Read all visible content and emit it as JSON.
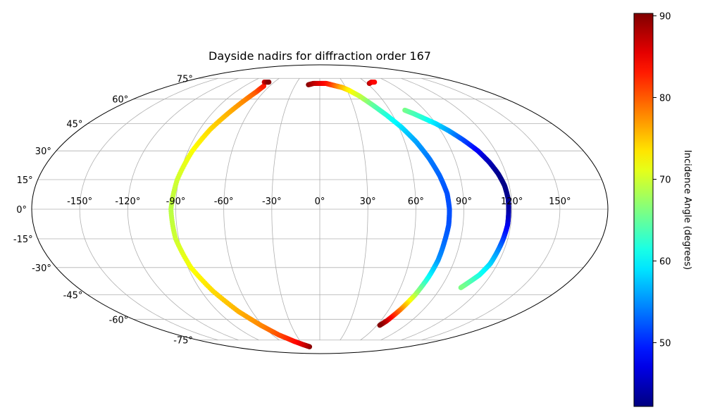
{
  "chart_data": {
    "type": "scatter",
    "projection": "mollweide",
    "title": "Dayside nadirs for diffraction order 167",
    "longitude_ticks": [
      -150,
      -120,
      -90,
      -60,
      -30,
      0,
      30,
      60,
      90,
      120,
      150
    ],
    "longitude_tick_labels": [
      "-150°",
      "-120°",
      "-90°",
      "-60°",
      "-30°",
      "0°",
      "30°",
      "60°",
      "90°",
      "120°",
      "150°"
    ],
    "latitude_ticks": [
      75,
      60,
      45,
      30,
      15,
      0,
      -15,
      -30,
      -45,
      -60,
      -75
    ],
    "latitude_tick_labels": [
      "75°",
      "60°",
      "45°",
      "30°",
      "15°",
      "0°",
      "-15°",
      "-30°",
      "-45°",
      "-60°",
      "-75°"
    ],
    "grid": true,
    "colormap": "jet",
    "colorbar": {
      "label": "Incidence Angle (degrees)",
      "range": [
        42.2,
        90.3
      ],
      "ticks": [
        50,
        60,
        70,
        80,
        90
      ],
      "tick_labels": [
        "50",
        "60",
        "70",
        "80",
        "90"
      ]
    },
    "tracks": [
      {
        "points": [
          [
            -21,
            -81,
            90
          ],
          [
            -30,
            -79,
            87
          ],
          [
            -40,
            -76,
            84
          ],
          [
            -52,
            -71,
            81
          ],
          [
            -62,
            -64,
            78
          ],
          [
            -72,
            -55,
            76
          ],
          [
            -81,
            -43,
            74
          ],
          [
            -88,
            -30,
            72
          ],
          [
            -92,
            -15,
            70
          ],
          [
            -93,
            0,
            69
          ],
          [
            -91,
            15,
            70
          ],
          [
            -87,
            30,
            72
          ],
          [
            -82,
            42,
            74
          ],
          [
            -76,
            52,
            76
          ],
          [
            -71,
            60,
            78
          ],
          [
            -68,
            65,
            80
          ],
          [
            -67,
            69,
            83
          ]
        ]
      },
      {
        "points": [
          [
            -73,
            72,
            86
          ],
          [
            -70,
            72,
            88
          ],
          [
            -67,
            72,
            90
          ]
        ]
      },
      {
        "points": [
          [
            -14,
            70,
            90
          ],
          [
            -8,
            71,
            88
          ],
          [
            0,
            71,
            86
          ],
          [
            8,
            71,
            84
          ],
          [
            14,
            70,
            82
          ],
          [
            20,
            69,
            79
          ],
          [
            26,
            68,
            76
          ],
          [
            32,
            66,
            73
          ],
          [
            40,
            62,
            70
          ],
          [
            48,
            56,
            65
          ],
          [
            55,
            50,
            62
          ],
          [
            62,
            43,
            59
          ],
          [
            68,
            35,
            56
          ],
          [
            73,
            26,
            54
          ],
          [
            77,
            17,
            53
          ],
          [
            80,
            8,
            52
          ],
          [
            81,
            0,
            52
          ],
          [
            81,
            -8,
            52
          ],
          [
            80,
            -16,
            53
          ],
          [
            79,
            -26,
            55
          ],
          [
            77,
            -35,
            60
          ],
          [
            74,
            -45,
            68
          ],
          [
            70,
            -54,
            78
          ],
          [
            66,
            -61,
            86
          ],
          [
            63,
            -64,
            90
          ]
        ]
      },
      {
        "points": [
          [
            63,
            71,
            88
          ],
          [
            68,
            72,
            86
          ],
          [
            72,
            72,
            84
          ]
        ]
      },
      {
        "points": [
          [
            73,
            53,
            66
          ],
          [
            78,
            51,
            64
          ],
          [
            84,
            48,
            62
          ],
          [
            90,
            45,
            59
          ],
          [
            96,
            41,
            56
          ],
          [
            102,
            36,
            52
          ],
          [
            108,
            30,
            48
          ],
          [
            112,
            24,
            45
          ],
          [
            115,
            18,
            43
          ],
          [
            117,
            12,
            42.5
          ],
          [
            118,
            5,
            43
          ],
          [
            118,
            -2,
            44
          ],
          [
            118,
            -8,
            47
          ],
          [
            117,
            -16,
            51
          ],
          [
            116,
            -22,
            55
          ],
          [
            115,
            -28,
            58
          ],
          [
            112,
            -34,
            61
          ],
          [
            108,
            -38,
            64
          ],
          [
            105,
            -41,
            66
          ]
        ]
      }
    ]
  }
}
